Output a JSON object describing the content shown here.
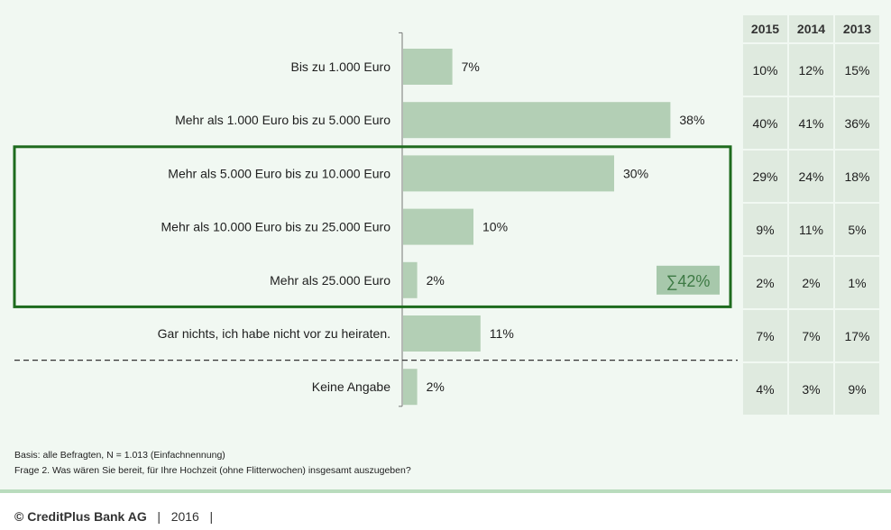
{
  "chart_data": {
    "type": "bar",
    "orientation": "horizontal",
    "categories": [
      "Bis zu 1.000 Euro",
      "Mehr als 1.000 Euro bis zu 5.000 Euro",
      "Mehr als 5.000 Euro bis zu 10.000 Euro",
      "Mehr als 10.000 Euro bis zu 25.000 Euro",
      "Mehr als 25.000 Euro",
      "Gar nichts, ich habe nicht vor zu heiraten.",
      "Keine Angabe"
    ],
    "values": [
      7,
      38,
      30,
      10,
      2,
      11,
      2
    ],
    "value_labels": [
      "7%",
      "38%",
      "30%",
      "10%",
      "2%",
      "11%",
      "2%"
    ],
    "bar_color": "#b3cfb5",
    "highlight_box_color": "#1e6b1e",
    "highlight_rows": [
      2,
      3,
      4
    ],
    "sum_label": "∑42%",
    "table": {
      "headers": [
        "2015",
        "2014",
        "2013"
      ],
      "rows": [
        [
          "10%",
          "12%",
          "15%"
        ],
        [
          "40%",
          "41%",
          "36%"
        ],
        [
          "29%",
          "24%",
          "18%"
        ],
        [
          "9%",
          "11%",
          "5%"
        ],
        [
          "2%",
          "2%",
          "1%"
        ],
        [
          "7%",
          "7%",
          "17%"
        ],
        [
          "4%",
          "3%",
          "9%"
        ]
      ]
    }
  },
  "footnote": {
    "basis": "Basis: alle Befragten, N = 1.013 (Einfachnennung)",
    "question": "Frage 2. Was wären Sie bereit, für Ihre Hochzeit (ohne Flitterwochen) insgesamt auszugeben?"
  },
  "footer": {
    "company": "© CreditPlus Bank AG",
    "separator": "|",
    "year": "2016"
  }
}
